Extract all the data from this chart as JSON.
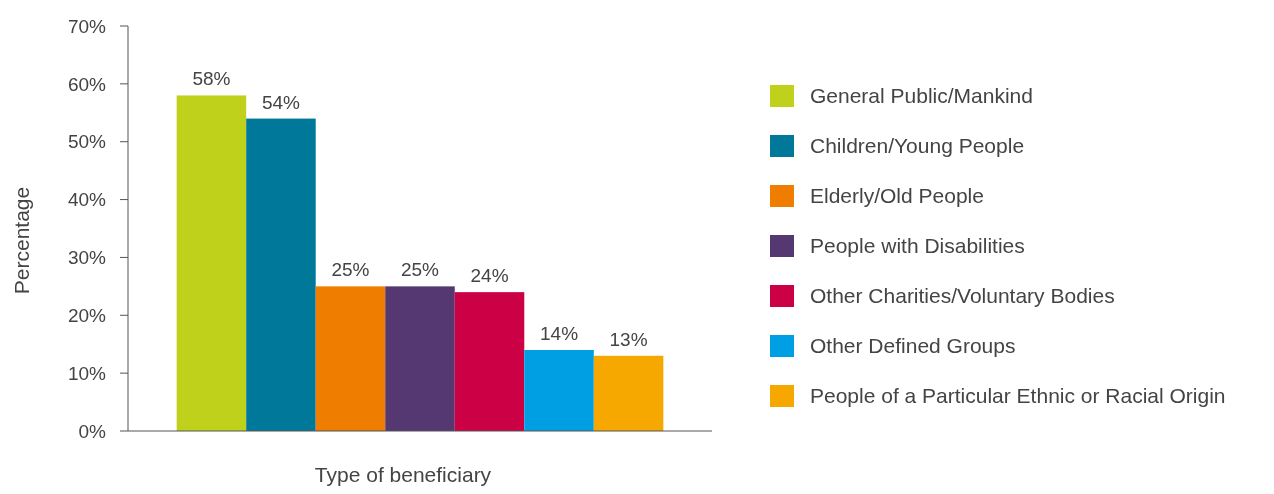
{
  "chart_data": {
    "type": "bar",
    "xlabel": "Type of beneficiary",
    "ylabel": "Percentage",
    "categories": [
      null
    ],
    "series": [
      {
        "name": "General Public/Mankind",
        "color": "#bfd11a",
        "values": [
          58
        ],
        "value_labels": [
          "58%"
        ]
      },
      {
        "name": "Children/Young People",
        "color": "#00789a",
        "values": [
          54
        ],
        "value_labels": [
          "54%"
        ]
      },
      {
        "name": "Elderly/Old People",
        "color": "#ef7d00",
        "values": [
          25
        ],
        "value_labels": [
          "25%"
        ]
      },
      {
        "name": "People with Disabilities",
        "color": "#553872",
        "values": [
          25
        ],
        "value_labels": [
          "25%"
        ]
      },
      {
        "name": "Other Charities/Voluntary Bodies",
        "color": "#cc0044",
        "values": [
          24
        ],
        "value_labels": [
          "24%"
        ]
      },
      {
        "name": "Other Defined Groups",
        "color": "#009fe3",
        "values": [
          14
        ],
        "value_labels": [
          "14%"
        ]
      },
      {
        "name": "People of a Particular Ethnic or Racial Origin",
        "color": "#f7a800",
        "values": [
          13
        ],
        "value_labels": [
          "13%"
        ]
      }
    ],
    "ylim": [
      0,
      70
    ],
    "yticks": [
      {
        "value": 0,
        "label": "0%"
      },
      {
        "value": 10,
        "label": "10%"
      },
      {
        "value": 20,
        "label": "20%"
      },
      {
        "value": 30,
        "label": "30%"
      },
      {
        "value": 40,
        "label": "40%"
      },
      {
        "value": 50,
        "label": "50%"
      },
      {
        "value": 60,
        "label": "60%"
      },
      {
        "value": 70,
        "label": "70%"
      }
    ],
    "grid": false,
    "legend": "right"
  }
}
